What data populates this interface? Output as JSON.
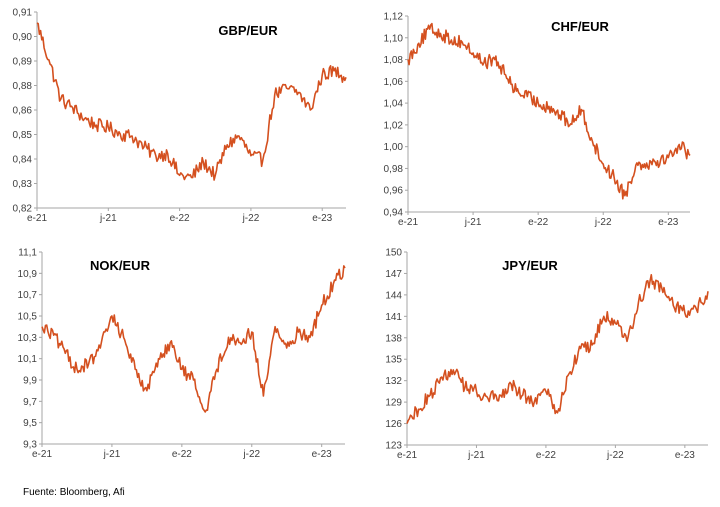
{
  "source_note": "Fuente: Bloomberg, Afi",
  "colors": {
    "line": "#D4501F",
    "axis": "#A6A6A6",
    "text": "#404040"
  },
  "chart_data": [
    {
      "type": "line",
      "title": "GBP/EUR",
      "x_tick_labels": [
        "e-21",
        "j-21",
        "e-22",
        "j-22",
        "e-23"
      ],
      "y_tick_labels": [
        "0,82",
        "0,83",
        "0,84",
        "0,85",
        "0,86",
        "0,88",
        "0,89",
        "0,90",
        "0,91"
      ],
      "ylim": [
        0.82,
        0.91
      ],
      "grid": false,
      "series": [
        {
          "x": [
            "2021-01",
            "2021-02",
            "2021-03",
            "2021-04",
            "2021-05",
            "2021-06",
            "2021-07",
            "2021-08",
            "2021-09",
            "2021-10",
            "2021-11",
            "2021-12",
            "2022-01",
            "2022-02",
            "2022-03",
            "2022-04",
            "2022-05",
            "2022-06",
            "2022-07",
            "2022-08",
            "2022-09",
            "2022-10",
            "2022-11",
            "2022-12",
            "2023-01",
            "2023-02",
            "2023-03"
          ],
          "values": [
            0.905,
            0.888,
            0.87,
            0.866,
            0.861,
            0.858,
            0.857,
            0.854,
            0.853,
            0.848,
            0.844,
            0.845,
            0.835,
            0.834,
            0.841,
            0.835,
            0.849,
            0.853,
            0.844,
            0.842,
            0.872,
            0.875,
            0.873,
            0.865,
            0.881,
            0.883,
            0.88
          ]
        }
      ]
    },
    {
      "type": "line",
      "title": "CHF/EUR",
      "x_tick_labels": [
        "e-21",
        "j-21",
        "e-22",
        "j-22",
        "e-23"
      ],
      "y_tick_labels": [
        "0,94",
        "0,96",
        "0,98",
        "1,00",
        "1,02",
        "1,04",
        "1,06",
        "1,08",
        "1,10",
        "1,12"
      ],
      "ylim": [
        0.94,
        1.12
      ],
      "grid": false,
      "series": [
        {
          "x": [
            "2021-01",
            "2021-02",
            "2021-03",
            "2021-04",
            "2021-05",
            "2021-06",
            "2021-07",
            "2021-08",
            "2021-09",
            "2021-10",
            "2021-11",
            "2021-12",
            "2022-01",
            "2022-02",
            "2022-03",
            "2022-04",
            "2022-05",
            "2022-06",
            "2022-07",
            "2022-08",
            "2022-09",
            "2022-10",
            "2022-11",
            "2022-12",
            "2023-01",
            "2023-02",
            "2023-03"
          ],
          "values": [
            1.08,
            1.095,
            1.108,
            1.104,
            1.098,
            1.096,
            1.086,
            1.077,
            1.08,
            1.066,
            1.051,
            1.046,
            1.04,
            1.037,
            1.029,
            1.021,
            1.034,
            1.005,
            0.984,
            0.972,
            0.955,
            0.983,
            0.985,
            0.987,
            0.99,
            1.002,
            0.992
          ]
        }
      ]
    },
    {
      "type": "line",
      "title": "NOK/EUR",
      "x_tick_labels": [
        "e-21",
        "j-21",
        "e-22",
        "j-22",
        "e-23"
      ],
      "y_tick_labels": [
        "9,3",
        "9,5",
        "9,7",
        "9,9",
        "10,1",
        "10,3",
        "10,5",
        "10,7",
        "10,9",
        "11,1"
      ],
      "ylim": [
        9.3,
        11.1
      ],
      "grid": false,
      "series": [
        {
          "x": [
            "2021-01",
            "2021-02",
            "2021-03",
            "2021-04",
            "2021-05",
            "2021-06",
            "2021-07",
            "2021-08",
            "2021-09",
            "2021-10",
            "2021-11",
            "2021-12",
            "2022-01",
            "2022-02",
            "2022-03",
            "2022-04",
            "2022-05",
            "2022-06",
            "2022-07",
            "2022-08",
            "2022-09",
            "2022-10",
            "2022-11",
            "2022-12",
            "2023-01",
            "2023-02",
            "2023-03"
          ],
          "values": [
            10.4,
            10.32,
            10.15,
            10.0,
            10.05,
            10.2,
            10.5,
            10.3,
            10.0,
            9.8,
            10.1,
            10.25,
            10.0,
            9.9,
            9.6,
            10.0,
            10.3,
            10.25,
            10.35,
            9.75,
            10.4,
            10.2,
            10.35,
            10.3,
            10.6,
            10.8,
            10.95
          ]
        }
      ]
    },
    {
      "type": "line",
      "title": "JPY/EUR",
      "x_tick_labels": [
        "e-21",
        "j-21",
        "e-22",
        "j-22",
        "e-23"
      ],
      "y_tick_labels": [
        "123",
        "126",
        "129",
        "132",
        "135",
        "138",
        "141",
        "144",
        "147",
        "150"
      ],
      "ylim": [
        123,
        150
      ],
      "grid": false,
      "series": [
        {
          "x": [
            "2021-01",
            "2021-02",
            "2021-03",
            "2021-04",
            "2021-05",
            "2021-06",
            "2021-07",
            "2021-08",
            "2021-09",
            "2021-10",
            "2021-11",
            "2021-12",
            "2022-01",
            "2022-02",
            "2022-03",
            "2022-04",
            "2022-05",
            "2022-06",
            "2022-07",
            "2022-08",
            "2022-09",
            "2022-10",
            "2022-11",
            "2022-12",
            "2023-01",
            "2023-02",
            "2023-03"
          ],
          "values": [
            126.0,
            128.0,
            130.0,
            132.5,
            133.5,
            131.0,
            130.5,
            129.5,
            130.0,
            131.5,
            130.0,
            129.0,
            130.5,
            127.5,
            133.0,
            136.5,
            137.0,
            141.0,
            140.0,
            137.5,
            143.0,
            146.0,
            145.0,
            142.5,
            141.5,
            142.0,
            144.5
          ]
        }
      ]
    }
  ]
}
